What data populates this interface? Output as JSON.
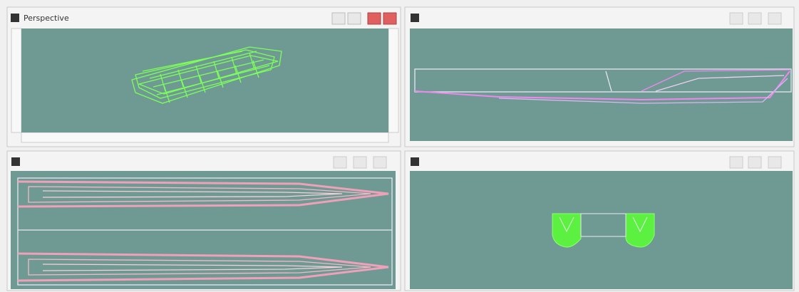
{
  "panels": [
    {
      "title": "Perspective"
    }
  ]
}
